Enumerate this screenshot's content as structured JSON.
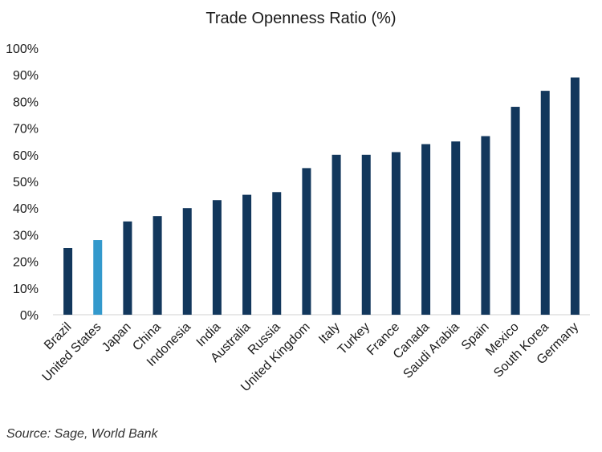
{
  "chart_data": {
    "type": "bar",
    "title": "Trade Openness Ratio (%)",
    "categories": [
      "Brazil",
      "United States",
      "Japan",
      "China",
      "Indonesia",
      "India",
      "Australia",
      "Russia",
      "United Kingdom",
      "Italy",
      "Turkey",
      "France",
      "Canada",
      "Saudi Arabia",
      "Spain",
      "Mexico",
      "South Korea",
      "Germany"
    ],
    "values": [
      25,
      28,
      35,
      37,
      40,
      43,
      45,
      46,
      55,
      60,
      60,
      61,
      64,
      65,
      67,
      78,
      84,
      89
    ],
    "highlight_category": "United States",
    "ylim": [
      0,
      100
    ],
    "yticks": [
      "0%",
      "10%",
      "20%",
      "30%",
      "40%",
      "50%",
      "60%",
      "70%",
      "80%",
      "90%",
      "100%"
    ],
    "xlabel": "",
    "ylabel": "",
    "grid": false,
    "colors": {
      "bar": "#12375c",
      "highlight": "#3399cc"
    }
  },
  "source": "Source: Sage, World Bank"
}
